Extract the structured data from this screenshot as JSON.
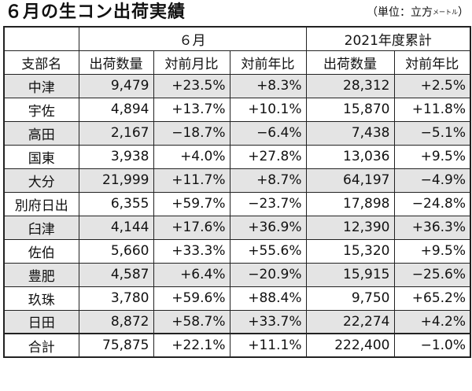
{
  "title": "６月の生コン出荷実績",
  "unit": {
    "open": "（単位：立方",
    "small": "メートル",
    "close": "）"
  },
  "groups": {
    "blank": "",
    "june": "６月",
    "ytd": "2021年度累計"
  },
  "columns": [
    "支部名",
    "出荷数量",
    "対前月比",
    "対前年比",
    "出荷数量",
    "対前年比"
  ],
  "rows": [
    {
      "name": "中津",
      "qty": "9,479",
      "mom": "+23.5%",
      "yoy": "+8.3%",
      "ytd_qty": "28,312",
      "ytd_yoy": "+2.5%"
    },
    {
      "name": "宇佐",
      "qty": "4,894",
      "mom": "+13.7%",
      "yoy": "+10.1%",
      "ytd_qty": "15,870",
      "ytd_yoy": "+11.8%"
    },
    {
      "name": "高田",
      "qty": "2,167",
      "mom": "−18.7%",
      "yoy": "−6.4%",
      "ytd_qty": "7,438",
      "ytd_yoy": "−5.1%"
    },
    {
      "name": "国東",
      "qty": "3,938",
      "mom": "+4.0%",
      "yoy": "+27.8%",
      "ytd_qty": "13,036",
      "ytd_yoy": "+9.5%"
    },
    {
      "name": "大分",
      "qty": "21,999",
      "mom": "+11.7%",
      "yoy": "+8.7%",
      "ytd_qty": "64,197",
      "ytd_yoy": "−4.9%"
    },
    {
      "name": "別府日出",
      "qty": "6,355",
      "mom": "+59.7%",
      "yoy": "−23.7%",
      "ytd_qty": "17,898",
      "ytd_yoy": "−24.8%"
    },
    {
      "name": "臼津",
      "qty": "4,144",
      "mom": "+17.6%",
      "yoy": "+36.9%",
      "ytd_qty": "12,390",
      "ytd_yoy": "+36.3%"
    },
    {
      "name": "佐伯",
      "qty": "5,660",
      "mom": "+33.3%",
      "yoy": "+55.6%",
      "ytd_qty": "15,320",
      "ytd_yoy": "+9.5%"
    },
    {
      "name": "豊肥",
      "qty": "4,587",
      "mom": "+6.4%",
      "yoy": "−20.9%",
      "ytd_qty": "15,915",
      "ytd_yoy": "−25.6%"
    },
    {
      "name": "玖珠",
      "qty": "3,780",
      "mom": "+59.6%",
      "yoy": "+88.4%",
      "ytd_qty": "9,750",
      "ytd_yoy": "+65.2%"
    },
    {
      "name": "日田",
      "qty": "8,872",
      "mom": "+58.7%",
      "yoy": "+33.7%",
      "ytd_qty": "22,274",
      "ytd_yoy": "+4.2%"
    }
  ],
  "total": {
    "name": "合計",
    "qty": "75,875",
    "mom": "+22.1%",
    "yoy": "+11.1%",
    "ytd_qty": "222,400",
    "ytd_yoy": "−1.0%"
  },
  "colors": {
    "shade": "#e4e4e4",
    "border": "#222222"
  }
}
